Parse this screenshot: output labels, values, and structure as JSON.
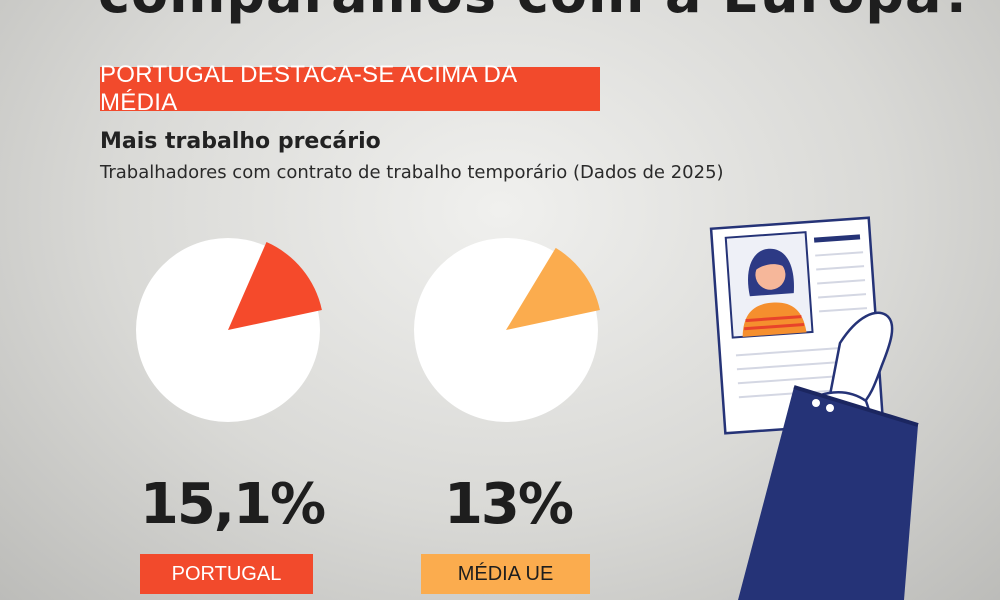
{
  "header": {
    "headline": "comparamos com a Europa?",
    "banner": "PORTUGAL DESTACA-SE ACIMA DA MÉDIA"
  },
  "chart_data": [
    {
      "type": "pie",
      "title": "Mais trabalho precário",
      "subtitle": "Trabalhadores com contrato de trabalho temporário (Dados de 2025)",
      "value": 15.1,
      "value_label": "15,1%",
      "series_label": "PORTUGAL",
      "colors": {
        "slice": "#f54a2b",
        "rest": "#ffffff"
      }
    },
    {
      "type": "pie",
      "value": 13,
      "value_label": "13%",
      "series_label": "MÉDIA UE",
      "colors": {
        "slice": "#fbac4e",
        "rest": "#ffffff"
      }
    }
  ],
  "colors": {
    "accent_red": "#f24a2c",
    "accent_orange": "#fbac4e",
    "sleeve_navy": "#253377"
  },
  "illustration": {
    "icon": "hand-holding-id-card-icon"
  }
}
